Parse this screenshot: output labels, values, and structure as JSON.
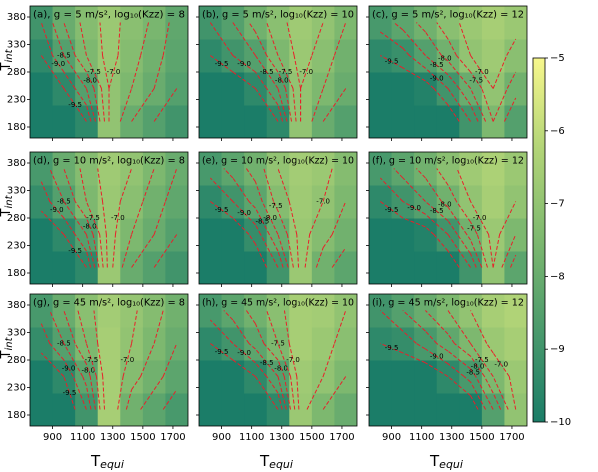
{
  "chart_data": [
    {
      "type": "heatmap",
      "title": "(a), g = 5 m/s², log₁₀(Kzz) = 8",
      "ylim": [
        160,
        400
      ],
      "yticks": [
        180,
        230,
        280,
        330,
        380
      ],
      "ylabel": {
        "main": "T",
        "sub": "int"
      },
      "x": [
        825,
        975,
        1125,
        1275,
        1425,
        1575,
        1725
      ],
      "y": [
        190,
        250,
        310,
        370
      ],
      "z": [
        [
          -10,
          -10,
          -9.5,
          -7.0,
          -8.0,
          -8.5,
          -9.0
        ],
        [
          -10,
          -9.5,
          -8.5,
          -7.0,
          -7.5,
          -8.0,
          -8.5
        ],
        [
          -9.5,
          -8.5,
          -7.5,
          -6.8,
          -7.3,
          -7.8,
          -8.3
        ],
        [
          -9.0,
          -8.0,
          -7.3,
          -6.8,
          -7.2,
          -7.6,
          -8.2
        ]
      ],
      "contour_levels": [
        -9.5,
        -9,
        -8.5,
        -8,
        -7.5,
        -7
      ],
      "contour_labels": [
        "-9.5",
        "-9.0",
        "-8.5",
        "-8.0",
        "-7.5",
        "-7.0"
      ],
      "contour_color": "#e8202a"
    },
    {
      "type": "heatmap",
      "title": "(b), g = 5 m/s², log₁₀(Kzz) = 10",
      "x": [
        825,
        975,
        1125,
        1275,
        1425,
        1575,
        1725
      ],
      "y": [
        190,
        250,
        310,
        370
      ],
      "z": [
        [
          -10,
          -10,
          -10,
          -9.5,
          -7.0,
          -8.0,
          -8.5
        ],
        [
          -10,
          -10,
          -9.5,
          -8.5,
          -7.0,
          -7.5,
          -8.0
        ],
        [
          -9.5,
          -9.0,
          -8.5,
          -7.5,
          -6.8,
          -7.2,
          -7.8
        ],
        [
          -9.0,
          -8.5,
          -7.8,
          -7.2,
          -6.7,
          -7.0,
          -7.5
        ]
      ],
      "contour_levels": [
        -9.5,
        -9,
        -8.5,
        -8,
        -7.5,
        -7
      ],
      "contour_labels": [
        "-9.5",
        "-9.0",
        "-8.5",
        "-8.0",
        "-7.5",
        "-7.0"
      ],
      "contour_color": "#e8202a"
    },
    {
      "type": "heatmap",
      "title": "(c), g = 5 m/s², log₁₀(Kzz) = 12",
      "x": [
        825,
        975,
        1125,
        1275,
        1425,
        1575,
        1725
      ],
      "y": [
        190,
        250,
        310,
        370
      ],
      "z": [
        [
          -10,
          -10,
          -10,
          -10,
          -9.0,
          -7.5,
          -8.5
        ],
        [
          -10,
          -10,
          -9.8,
          -9.0,
          -8.0,
          -7.0,
          -7.8
        ],
        [
          -9.5,
          -9.2,
          -8.5,
          -7.8,
          -7.0,
          -6.7,
          -7.2
        ],
        [
          -8.8,
          -8.3,
          -7.8,
          -7.2,
          -6.8,
          -6.5,
          -6.8
        ]
      ],
      "contour_levels": [
        -9.5,
        -9,
        -8.5,
        -8,
        -7.5,
        -7
      ],
      "contour_labels": [
        "-9.5",
        "-9.0",
        "-8.5",
        "-8.0",
        "-7.5",
        "-7.0"
      ],
      "contour_color": "#e8202a"
    },
    {
      "type": "heatmap",
      "title": "(d), g = 10 m/s², log₁₀(Kzz) = 8",
      "ylim": [
        160,
        400
      ],
      "yticks": [
        180,
        230,
        280,
        330,
        380
      ],
      "ylabel": {
        "main": "T",
        "sub": "int"
      },
      "x": [
        825,
        975,
        1125,
        1275,
        1425,
        1575,
        1725
      ],
      "y": [
        190,
        250,
        310,
        370
      ],
      "z": [
        [
          -10,
          -10,
          -9.5,
          -6.8,
          -8.0,
          -8.5,
          -9.0
        ],
        [
          -10,
          -9.5,
          -8.5,
          -6.8,
          -7.5,
          -8.0,
          -8.5
        ],
        [
          -9.3,
          -8.5,
          -7.5,
          -6.8,
          -7.2,
          -7.8,
          -8.2
        ],
        [
          -8.8,
          -8.0,
          -7.3,
          -6.7,
          -7.0,
          -7.5,
          -8.0
        ]
      ],
      "contour_levels": [
        -9.5,
        -9,
        -8.5,
        -8,
        -7.5,
        -7
      ],
      "contour_labels": [
        "-9.5",
        "-9.0",
        "-8.5",
        "-8.0",
        "-7.5",
        "-7.0"
      ],
      "contour_color": "#e8202a"
    },
    {
      "type": "heatmap",
      "title": "(e), g = 10 m/s², log₁₀(Kzz) = 10",
      "x": [
        825,
        975,
        1125,
        1275,
        1425,
        1575,
        1725
      ],
      "y": [
        190,
        250,
        310,
        370
      ],
      "z": [
        [
          -10,
          -10,
          -10,
          -9.0,
          -6.8,
          -7.8,
          -8.3
        ],
        [
          -10,
          -10,
          -9.3,
          -8.0,
          -6.8,
          -7.3,
          -7.8
        ],
        [
          -9.5,
          -9.0,
          -8.3,
          -7.3,
          -6.7,
          -7.0,
          -7.5
        ],
        [
          -8.8,
          -8.3,
          -7.8,
          -7.0,
          -6.6,
          -6.8,
          -7.3
        ]
      ],
      "contour_levels": [
        -9.5,
        -9,
        -8.5,
        -8,
        -7.5,
        -7
      ],
      "contour_labels": [
        "-9.5",
        "-9.0",
        "-8.5",
        "-8.0",
        "-7.5",
        "-7.0"
      ],
      "contour_color": "#e8202a"
    },
    {
      "type": "heatmap",
      "title": "(f), g = 10 m/s², log₁₀(Kzz) = 12",
      "x": [
        825,
        975,
        1125,
        1275,
        1425,
        1575,
        1725
      ],
      "y": [
        190,
        250,
        310,
        370
      ],
      "z": [
        [
          -10,
          -10,
          -10,
          -10,
          -9.0,
          -7.0,
          -8.3
        ],
        [
          -10,
          -10,
          -9.8,
          -9.0,
          -7.8,
          -6.8,
          -7.5
        ],
        [
          -9.5,
          -9.0,
          -8.5,
          -7.8,
          -7.0,
          -6.5,
          -7.0
        ],
        [
          -8.8,
          -8.3,
          -7.8,
          -7.2,
          -6.7,
          -6.4,
          -6.8
        ]
      ],
      "contour_levels": [
        -9.5,
        -9,
        -8.5,
        -8,
        -7.5,
        -7
      ],
      "contour_labels": [
        "-9.5",
        "-9.0",
        "-8.5",
        "-8.0",
        "-7.5",
        "-7.0"
      ],
      "contour_color": "#e8202a"
    },
    {
      "type": "heatmap",
      "title": "(g), g = 45 m/s², log₁₀(Kzz) = 8",
      "ylim": [
        160,
        400
      ],
      "yticks": [
        180,
        230,
        280,
        330,
        380
      ],
      "ylabel": {
        "main": "T",
        "sub": "int"
      },
      "xlim": [
        750,
        1800
      ],
      "xticks": [
        900,
        1100,
        1300,
        1500,
        1700
      ],
      "xlabel": {
        "main": "T",
        "sub": "equi"
      },
      "x": [
        825,
        975,
        1125,
        1275,
        1425,
        1575,
        1725
      ],
      "y": [
        190,
        250,
        310,
        370
      ],
      "z": [
        [
          -10,
          -10,
          -9.0,
          -6.5,
          -7.8,
          -8.3,
          -8.8
        ],
        [
          -10,
          -9.5,
          -8.3,
          -6.5,
          -7.3,
          -7.8,
          -8.3
        ],
        [
          -9.3,
          -8.5,
          -7.5,
          -6.5,
          -7.0,
          -7.5,
          -8.0
        ],
        [
          -8.8,
          -8.0,
          -7.2,
          -6.6,
          -6.9,
          -7.3,
          -7.8
        ]
      ],
      "contour_levels": [
        -9.5,
        -9,
        -8.5,
        -8,
        -7.5,
        -7
      ],
      "contour_labels": [
        "-9.5",
        "-9.0",
        "-8.5",
        "-8.0",
        "-7.5",
        "-7.0"
      ],
      "contour_color": "#e8202a"
    },
    {
      "type": "heatmap",
      "title": "(h), g = 45 m/s², log₁₀(Kzz) = 10",
      "xlim": [
        750,
        1800
      ],
      "xticks": [
        900,
        1100,
        1300,
        1500,
        1700
      ],
      "xlabel": {
        "main": "T",
        "sub": "equi"
      },
      "x": [
        825,
        975,
        1125,
        1275,
        1425,
        1575,
        1725
      ],
      "y": [
        190,
        250,
        310,
        370
      ],
      "z": [
        [
          -10,
          -10,
          -10,
          -9.5,
          -6.8,
          -7.5,
          -8.0
        ],
        [
          -10,
          -10,
          -9.5,
          -8.5,
          -6.7,
          -7.0,
          -7.5
        ],
        [
          -9.5,
          -9.0,
          -8.3,
          -7.5,
          -6.5,
          -6.8,
          -7.2
        ],
        [
          -8.8,
          -8.3,
          -7.8,
          -7.2,
          -6.5,
          -6.6,
          -7.0
        ]
      ],
      "contour_levels": [
        -9.5,
        -9,
        -8.5,
        -8,
        -7.5,
        -7
      ],
      "contour_labels": [
        "-9.5",
        "-9.0",
        "-8.5",
        "-8.0",
        "-7.5",
        "-7.0"
      ],
      "contour_color": "#e8202a"
    },
    {
      "type": "heatmap",
      "title": "(i), g = 45 m/s², log₁₀(Kzz) = 12",
      "xlim": [
        750,
        1800
      ],
      "xticks": [
        900,
        1100,
        1300,
        1500,
        1700
      ],
      "xlabel": {
        "main": "T",
        "sub": "equi"
      },
      "x": [
        825,
        975,
        1125,
        1275,
        1425,
        1575,
        1725
      ],
      "y": [
        190,
        250,
        310,
        370
      ],
      "z": [
        [
          -10,
          -10,
          -10,
          -10,
          -10,
          -8.5,
          -7.0
        ],
        [
          -10,
          -10,
          -10,
          -9.5,
          -8.8,
          -7.5,
          -6.8
        ],
        [
          -9.5,
          -9.3,
          -8.8,
          -8.2,
          -7.5,
          -6.8,
          -6.5
        ],
        [
          -9.0,
          -8.5,
          -8.0,
          -7.5,
          -7.0,
          -6.5,
          -6.3
        ]
      ],
      "contour_levels": [
        -9.5,
        -9,
        -8.5,
        -8,
        -7.5,
        -7
      ],
      "contour_labels": [
        "-9.5",
        "-9.0",
        "-8.5",
        "-8.0",
        "-7.5",
        "-7.0"
      ],
      "contour_color": "#e8202a"
    },
    {
      "type": "colorbar",
      "ylim": [
        -10,
        -5
      ],
      "yticks": [
        {
          "value": -10,
          "label": "−10"
        },
        {
          "value": -9,
          "label": "−9"
        },
        {
          "value": -8,
          "label": "−8"
        },
        {
          "value": -7,
          "label": "−7"
        },
        {
          "value": -6,
          "label": "−6"
        },
        {
          "value": -5,
          "label": "−5"
        }
      ],
      "colors": [
        "#1b7d68",
        "#4a9a6c",
        "#7db86f",
        "#b2d477",
        "#f7f78c"
      ]
    }
  ]
}
